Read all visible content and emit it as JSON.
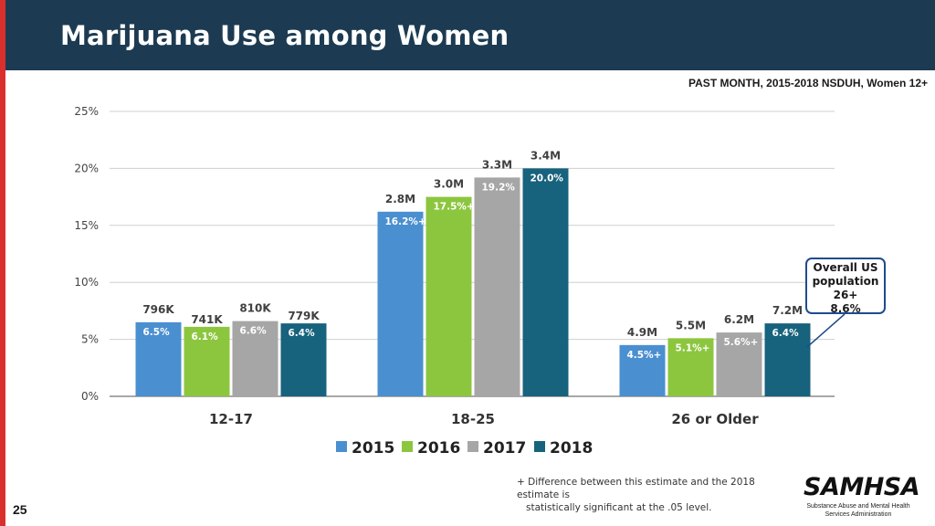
{
  "slide": {
    "title": "Marijuana Use among Women",
    "subtitle": "PAST MONTH, 2015-2018 NSDUH, Women 12+",
    "page_number": "25",
    "footnote_line1": "+ Difference between this estimate and the 2018 estimate is",
    "footnote_line2": "statistically significant at the .05 level.",
    "callout": [
      "Overall US",
      "population",
      "26+",
      "8.6%"
    ],
    "logo_text": "SAMHSA",
    "logo_subtext_line1": "Substance Abuse and Mental Health",
    "logo_subtext_line2": "Services Administration"
  },
  "colors": {
    "2015": "#4a8fd0",
    "2016": "#8cc63f",
    "2017": "#a6a6a6",
    "2018": "#17627c"
  },
  "chart_data": {
    "type": "bar",
    "title": "",
    "xlabel": "",
    "ylabel": "",
    "ylim": [
      0,
      25
    ],
    "yticks": [
      "0%",
      "5%",
      "10%",
      "15%",
      "20%",
      "25%"
    ],
    "grid": true,
    "legend": "bottom",
    "categories": [
      "12-17",
      "18-25",
      "26 or Older"
    ],
    "series": [
      {
        "name": "2015",
        "values": [
          6.5,
          16.2,
          4.5
        ],
        "labels": [
          "6.5%",
          "16.2%+",
          "4.5%+"
        ],
        "counts": [
          "796K",
          "2.8M",
          "4.9M"
        ]
      },
      {
        "name": "2016",
        "values": [
          6.1,
          17.5,
          5.1
        ],
        "labels": [
          "6.1%",
          "17.5%+",
          "5.1%+"
        ],
        "counts": [
          "741K",
          "3.0M",
          "5.5M"
        ]
      },
      {
        "name": "2017",
        "values": [
          6.6,
          19.2,
          5.6
        ],
        "labels": [
          "6.6%",
          "19.2%",
          "5.6%+"
        ],
        "counts": [
          "810K",
          "3.3M",
          "6.2M"
        ]
      },
      {
        "name": "2018",
        "values": [
          6.4,
          20.0,
          6.4
        ],
        "labels": [
          "6.4%",
          "20.0%",
          "6.4%"
        ],
        "counts": [
          "779K",
          "3.4M",
          "7.2M"
        ]
      }
    ]
  }
}
